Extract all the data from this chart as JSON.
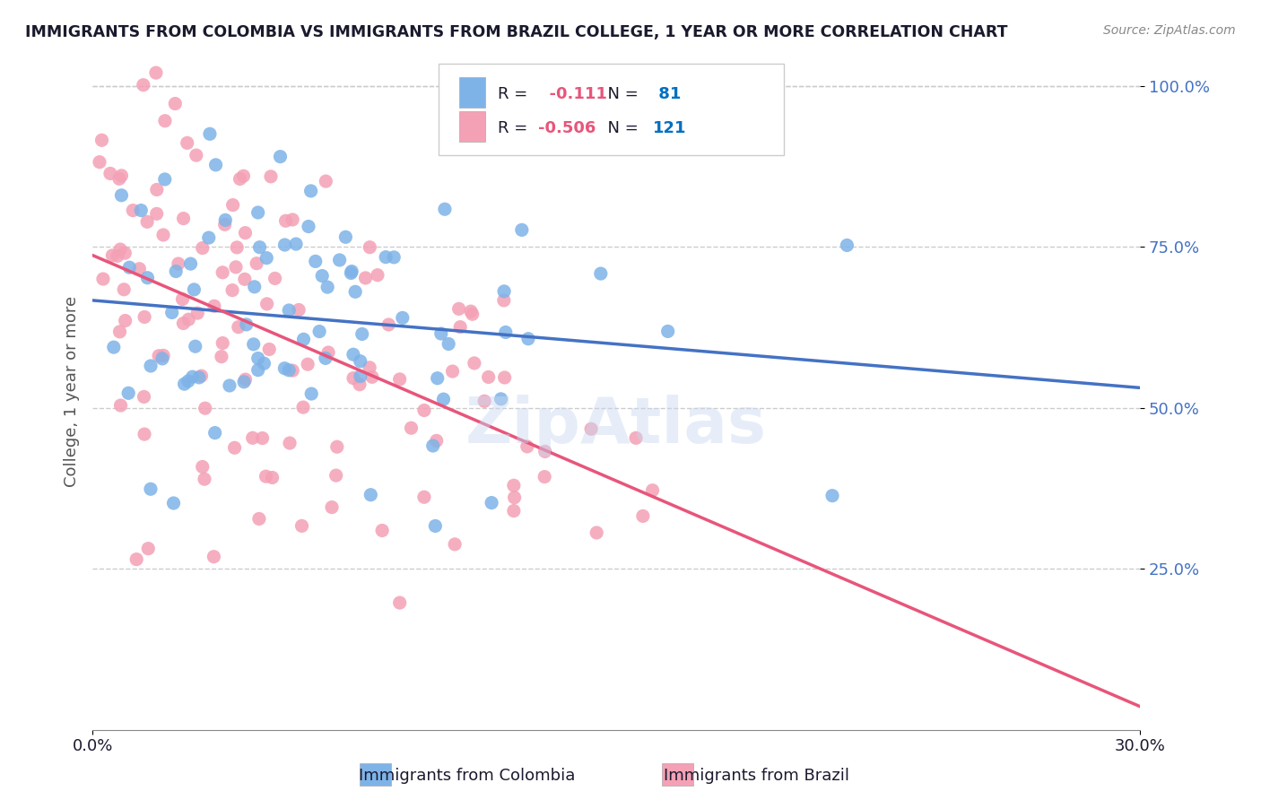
{
  "title": "IMMIGRANTS FROM COLOMBIA VS IMMIGRANTS FROM BRAZIL COLLEGE, 1 YEAR OR MORE CORRELATION CHART",
  "source": "Source: ZipAtlas.com",
  "xlabel": "",
  "ylabel": "College, 1 year or more",
  "xmin": 0.0,
  "xmax": 0.3,
  "ymin": 0.0,
  "ymax": 1.05,
  "xtick_labels": [
    "0.0%",
    "30.0%"
  ],
  "ytick_labels": [
    "25.0%",
    "50.0%",
    "75.0%",
    "100.0%"
  ],
  "ytick_values": [
    0.25,
    0.5,
    0.75,
    1.0
  ],
  "colombia_color": "#7EB3E8",
  "brazil_color": "#F4A0B5",
  "colombia_line_color": "#4472C4",
  "brazil_line_color": "#E8557A",
  "colombia_R": -0.111,
  "colombia_N": 81,
  "brazil_R": -0.506,
  "brazil_N": 121,
  "legend_r_color": "#FF0066",
  "legend_n_color": "#0070C0",
  "watermark": "ZipAtlas",
  "background_color": "#FFFFFF",
  "grid_color": "#CCCCCC",
  "colombia_seed": 42,
  "brazil_seed": 123
}
